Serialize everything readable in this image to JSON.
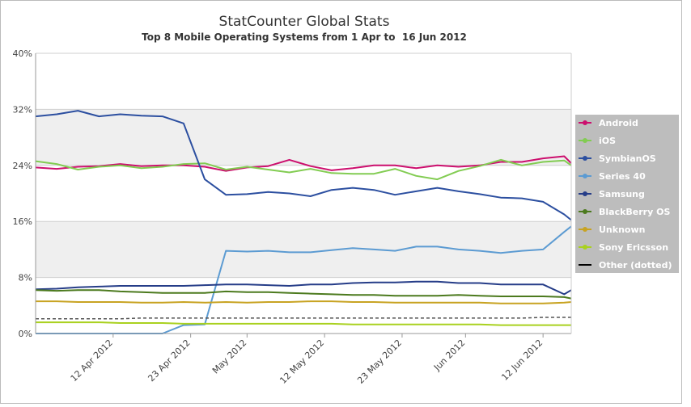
{
  "chart_data": {
    "type": "line",
    "title": "StatCounter Global Stats",
    "subtitle": "Top 8 Mobile Operating Systems from 1 Apr to  16 Jun 2012",
    "x": [
      "2012-04-01",
      "2012-04-04",
      "2012-04-07",
      "2012-04-10",
      "2012-04-13",
      "2012-04-16",
      "2012-04-19",
      "2012-04-22",
      "2012-04-25",
      "2012-04-28",
      "2012-05-01",
      "2012-05-04",
      "2012-05-07",
      "2012-05-10",
      "2012-05-13",
      "2012-05-16",
      "2012-05-19",
      "2012-05-22",
      "2012-05-25",
      "2012-05-28",
      "2012-05-31",
      "2012-06-03",
      "2012-06-06",
      "2012-06-09",
      "2012-06-12",
      "2012-06-15",
      "2012-06-16"
    ],
    "xlim": [
      "2012-04-01",
      "2012-06-16"
    ],
    "xticks": [
      {
        "value": "2012-04-12",
        "label": "12 Apr 2012"
      },
      {
        "value": "2012-04-23",
        "label": "23 Apr 2012"
      },
      {
        "value": "2012-05-01",
        "label": "May 2012"
      },
      {
        "value": "2012-05-12",
        "label": "12 May 2012"
      },
      {
        "value": "2012-05-23",
        "label": "23 May 2012"
      },
      {
        "value": "2012-06-01",
        "label": "Jun 2012"
      },
      {
        "value": "2012-06-12",
        "label": "12 Jun 2012"
      }
    ],
    "ylim": [
      0,
      40
    ],
    "yticks": [
      {
        "value": 0,
        "label": "0%"
      },
      {
        "value": 8,
        "label": "8%"
      },
      {
        "value": 16,
        "label": "16%"
      },
      {
        "value": 24,
        "label": "24%"
      },
      {
        "value": 32,
        "label": "32%"
      },
      {
        "value": 40,
        "label": "40%"
      }
    ],
    "grid": true,
    "legend": "right",
    "series": [
      {
        "name": "Android",
        "color": "#cc0f6e",
        "values": [
          23.7,
          23.5,
          23.8,
          23.9,
          24.2,
          23.9,
          24.0,
          24.0,
          23.8,
          23.2,
          23.7,
          23.9,
          24.8,
          23.9,
          23.3,
          23.6,
          24.0,
          24.0,
          23.6,
          24.0,
          23.8,
          24.0,
          24.5,
          24.5,
          25.0,
          25.3,
          24.3
        ]
      },
      {
        "name": "iOS",
        "color": "#82cc52",
        "values": [
          24.6,
          24.2,
          23.4,
          23.8,
          24.0,
          23.6,
          23.8,
          24.2,
          24.3,
          23.4,
          23.8,
          23.4,
          23.0,
          23.5,
          22.9,
          22.8,
          22.8,
          23.5,
          22.5,
          22.0,
          23.2,
          23.9,
          24.8,
          24.0,
          24.5,
          24.7,
          24.0
        ]
      },
      {
        "name": "SymbianOS",
        "color": "#2c4fa0",
        "values": [
          31.0,
          31.3,
          31.8,
          31.0,
          31.3,
          31.1,
          31.0,
          30.0,
          22.0,
          19.8,
          19.9,
          20.2,
          20.0,
          19.6,
          20.5,
          20.8,
          20.5,
          19.8,
          20.3,
          20.8,
          20.3,
          19.9,
          19.4,
          19.3,
          18.8,
          17.0,
          16.2
        ]
      },
      {
        "name": "Series 40",
        "color": "#5c9bd2",
        "values": [
          0,
          0,
          0,
          0,
          0,
          0,
          0,
          1.2,
          1.3,
          11.8,
          11.7,
          11.8,
          11.6,
          11.6,
          11.9,
          12.2,
          12.0,
          11.8,
          12.4,
          12.4,
          12.0,
          11.8,
          11.5,
          11.8,
          12.0,
          14.5,
          15.3
        ]
      },
      {
        "name": "Samsung",
        "color": "#263d88",
        "values": [
          6.3,
          6.4,
          6.6,
          6.7,
          6.8,
          6.8,
          6.8,
          6.8,
          6.9,
          7.0,
          7.0,
          6.9,
          6.8,
          7.0,
          7.0,
          7.2,
          7.3,
          7.3,
          7.4,
          7.4,
          7.2,
          7.2,
          7.0,
          7.0,
          7.0,
          5.6,
          6.2
        ]
      },
      {
        "name": "BlackBerry OS",
        "color": "#4c7a1e",
        "values": [
          6.2,
          6.1,
          6.2,
          6.2,
          6.0,
          5.9,
          5.8,
          5.8,
          5.8,
          6.0,
          5.9,
          5.9,
          5.8,
          5.7,
          5.6,
          5.5,
          5.5,
          5.4,
          5.4,
          5.4,
          5.5,
          5.4,
          5.3,
          5.3,
          5.3,
          5.2,
          5.0
        ]
      },
      {
        "name": "Unknown",
        "color": "#c8a322",
        "values": [
          4.6,
          4.6,
          4.5,
          4.5,
          4.5,
          4.4,
          4.4,
          4.5,
          4.4,
          4.5,
          4.4,
          4.5,
          4.5,
          4.6,
          4.6,
          4.5,
          4.5,
          4.4,
          4.4,
          4.4,
          4.4,
          4.4,
          4.3,
          4.3,
          4.3,
          4.4,
          4.5
        ]
      },
      {
        "name": "Sony Ericsson",
        "color": "#a9d11f",
        "values": [
          1.6,
          1.6,
          1.6,
          1.6,
          1.5,
          1.5,
          1.5,
          1.4,
          1.4,
          1.4,
          1.4,
          1.4,
          1.4,
          1.4,
          1.4,
          1.3,
          1.3,
          1.3,
          1.3,
          1.3,
          1.3,
          1.3,
          1.2,
          1.2,
          1.2,
          1.2,
          1.2
        ]
      },
      {
        "name": "Other (dotted)",
        "color": "#555555",
        "dotted": true,
        "values": [
          2.1,
          2.1,
          2.1,
          2.1,
          2.1,
          2.2,
          2.2,
          2.2,
          2.2,
          2.2,
          2.2,
          2.2,
          2.2,
          2.2,
          2.2,
          2.2,
          2.2,
          2.2,
          2.2,
          2.2,
          2.2,
          2.2,
          2.2,
          2.2,
          2.3,
          2.3,
          2.3
        ]
      }
    ]
  }
}
